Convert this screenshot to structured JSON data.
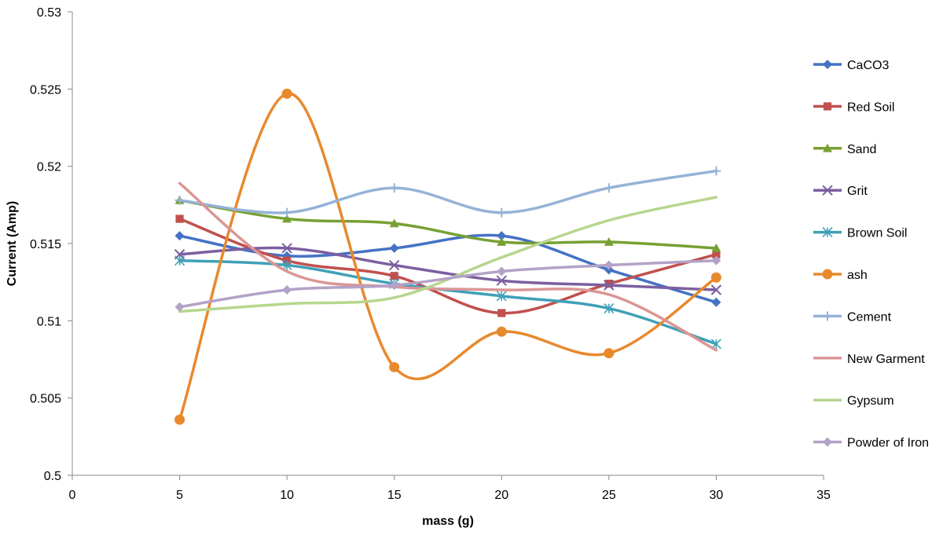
{
  "chart_data": {
    "type": "line",
    "title": "",
    "xlabel": "mass (g)",
    "ylabel": "Current (Amp)",
    "xlim": [
      0,
      35
    ],
    "ylim": [
      0.5,
      0.53
    ],
    "x_ticks": [
      "0",
      "5",
      "10",
      "15",
      "20",
      "25",
      "30",
      "35"
    ],
    "y_ticks": [
      "0.5",
      "0.505",
      "0.51",
      "0.515",
      "0.52",
      "0.525",
      "0.53"
    ],
    "grid": false,
    "legend_position": "right",
    "smooth": true,
    "x": [
      5,
      10,
      15,
      20,
      25,
      30
    ],
    "series": [
      {
        "name": "CaCO3",
        "color": "#4472C4",
        "marker": "diamond",
        "values": [
          0.5155,
          0.5142,
          0.5147,
          0.5155,
          0.5133,
          0.5112
        ]
      },
      {
        "name": "Red Soil",
        "color": "#C0504D",
        "marker": "square",
        "values": [
          0.5166,
          0.5139,
          0.5129,
          0.5105,
          0.5124,
          0.5143
        ]
      },
      {
        "name": "Sand",
        "color": "#77A033",
        "marker": "triangle",
        "values": [
          0.5178,
          0.5166,
          0.5163,
          0.5151,
          0.5151,
          0.5147
        ]
      },
      {
        "name": "Grit",
        "color": "#7B5FA0",
        "marker": "x",
        "values": [
          0.5143,
          0.5147,
          0.5136,
          0.5126,
          0.5123,
          0.512
        ]
      },
      {
        "name": "Brown Soil",
        "color": "#3FA0B8",
        "marker": "asterisk",
        "values": [
          0.5139,
          0.5136,
          0.5124,
          0.5116,
          0.5108,
          0.5085
        ]
      },
      {
        "name": "ash",
        "color": "#E8892E",
        "marker": "circle",
        "values": [
          0.5036,
          0.5247,
          0.507,
          0.5093,
          0.5079,
          0.5128
        ]
      },
      {
        "name": "Cement",
        "color": "#95B3D7",
        "marker": "plus",
        "values": [
          0.5178,
          0.517,
          0.5186,
          0.517,
          0.5186,
          0.5197
        ]
      },
      {
        "name": "New Garment",
        "color": "#DA9694",
        "marker": "none",
        "values": [
          0.5189,
          0.5132,
          0.5122,
          0.512,
          0.5117,
          0.5081
        ]
      },
      {
        "name": "Gypsum",
        "color": "#B7D68E",
        "marker": "none",
        "values": [
          0.5106,
          0.5111,
          0.5115,
          0.5141,
          0.5165,
          0.518
        ]
      },
      {
        "name": "Powder of Iron",
        "color": "#B3A2C7",
        "marker": "diamond",
        "values": [
          0.5109,
          0.512,
          0.5123,
          0.5132,
          0.5136,
          0.5139
        ]
      }
    ]
  }
}
